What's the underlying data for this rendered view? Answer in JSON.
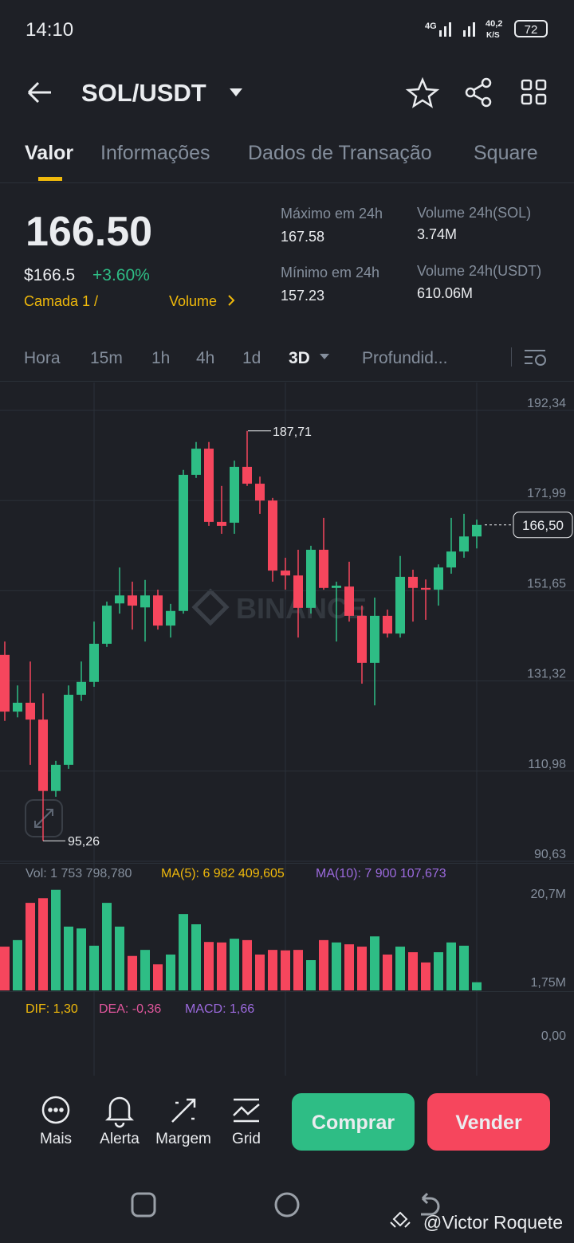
{
  "status_bar": {
    "time": "14:10",
    "network": "4G",
    "speed": "40,2",
    "speed_unit": "K/S",
    "battery": "72"
  },
  "header": {
    "pair": "SOL/USDT"
  },
  "tabs": [
    "Valor",
    "Informações",
    "Dados de Transação",
    "Square"
  ],
  "price": {
    "last": "166.50",
    "usd": "$166.5",
    "change": "+3.60%",
    "layer": "Camada 1 /",
    "volume_link": "Volume",
    "stats": [
      {
        "label": "Máximo em 24h",
        "value": "167.58"
      },
      {
        "label": "Volume 24h(SOL)",
        "value": "3.74M"
      },
      {
        "label": "Mínimo em 24h",
        "value": "157.23"
      },
      {
        "label": "Volume 24h(USDT)",
        "value": "610.06M"
      }
    ]
  },
  "timeframes": [
    "Hora",
    "15m",
    "1h",
    "4h",
    "1d",
    "3D",
    "Profundid..."
  ],
  "chart": {
    "type": "candlestick",
    "watermark": "BINANCE",
    "ylim": [
      90.63,
      192.34
    ],
    "yticks": [
      {
        "value": 192.34,
        "label": "192,34"
      },
      {
        "value": 171.99,
        "label": "171,99"
      },
      {
        "value": 151.65,
        "label": "151,65"
      },
      {
        "value": 131.32,
        "label": "131,32"
      },
      {
        "value": 110.98,
        "label": "110,98"
      },
      {
        "value": 90.63,
        "label": "90,63"
      }
    ],
    "last_price": {
      "value": 166.5,
      "label": "166,50"
    },
    "high_label": {
      "value": 187.71,
      "label": "187,71"
    },
    "low_label": {
      "value": 95.26,
      "label": "95,26"
    },
    "open": [
      137.2,
      124.4,
      126.4,
      122.6,
      106.5,
      112.4,
      128.2,
      131.1,
      139.7,
      148.8,
      150.6,
      147.9,
      150.6,
      143.8,
      147.1,
      177.8,
      183.7,
      167.2,
      167.0,
      179.6,
      175.8,
      172.0,
      156.2,
      155.1,
      147.8,
      160.9,
      152.3,
      152.6,
      146.0,
      135.4,
      146.0,
      142.0,
      154.8,
      152.3,
      151.9,
      156.9,
      160.5,
      163.9
    ],
    "high": [
      140.2,
      130.3,
      135.7,
      128.5,
      113.3,
      130.3,
      135.7,
      144.7,
      149.2,
      156.9,
      153.7,
      154.1,
      151.9,
      148.7,
      178.9,
      185.2,
      185.2,
      175.3,
      181.0,
      187.71,
      177.4,
      172.6,
      159.1,
      160.9,
      161.8,
      168.1,
      153.7,
      158.2,
      148.3,
      150.1,
      147.4,
      159.5,
      156.4,
      154.2,
      157.6,
      168.1,
      169.0,
      167.7
    ],
    "low": [
      122.3,
      123.1,
      112.4,
      95.26,
      105.2,
      111.5,
      126.8,
      130.0,
      139.0,
      146.5,
      142.9,
      140.2,
      142.9,
      141.1,
      146.5,
      177.1,
      166.3,
      164.5,
      164.5,
      175.3,
      169.0,
      153.7,
      151.9,
      141.1,
      146.5,
      151.9,
      140.2,
      144.7,
      130.7,
      125.8,
      141.1,
      141.1,
      144.7,
      145.1,
      148.3,
      155.5,
      159.1,
      161.2
    ],
    "close": [
      124.4,
      126.4,
      122.6,
      106.5,
      112.4,
      128.2,
      131.1,
      139.7,
      148.3,
      150.6,
      148.3,
      150.6,
      143.8,
      147.1,
      177.8,
      183.7,
      167.2,
      166.3,
      179.6,
      175.8,
      172.0,
      156.2,
      155.1,
      147.8,
      160.9,
      152.3,
      152.8,
      146.0,
      135.4,
      146.0,
      142.0,
      154.8,
      152.3,
      151.9,
      156.9,
      160.5,
      163.9,
      166.5
    ]
  },
  "volume": {
    "legend": "Vol: 1 753 798,780",
    "ma5": "MA(5): 6 982 409,605",
    "ma10": "MA(10): 7 900 107,673",
    "ylim": [
      0,
      20.7
    ],
    "yticks": [
      {
        "value": 20.7,
        "label": "20,7M"
      },
      {
        "value": 1.75,
        "label": "1,75M"
      }
    ],
    "values": [
      9.4,
      10.8,
      18.8,
      19.8,
      21.6,
      13.7,
      13.3,
      9.6,
      18.8,
      13.7,
      7.4,
      8.7,
      5.6,
      7.7,
      16.4,
      14.2,
      10.4,
      10.3,
      11.1,
      10.8,
      7.7,
      8.7,
      8.6,
      8.7,
      6.5,
      10.8,
      10.3,
      9.9,
      9.4,
      11.6,
      7.7,
      9.4,
      8.2,
      6.0,
      8.2,
      10.3,
      9.6,
      1.75
    ]
  },
  "macd": {
    "dif": "DIF: 1,30",
    "dea": "DEA: -0,36",
    "macd": "MACD: 1,66",
    "zero": {
      "value": 0,
      "label": "0,00"
    }
  },
  "actions": [
    "Mais",
    "Alerta",
    "Margem",
    "Grid"
  ],
  "buy": "Comprar",
  "sell": "Vender",
  "credit": "@Victor Roquete"
}
